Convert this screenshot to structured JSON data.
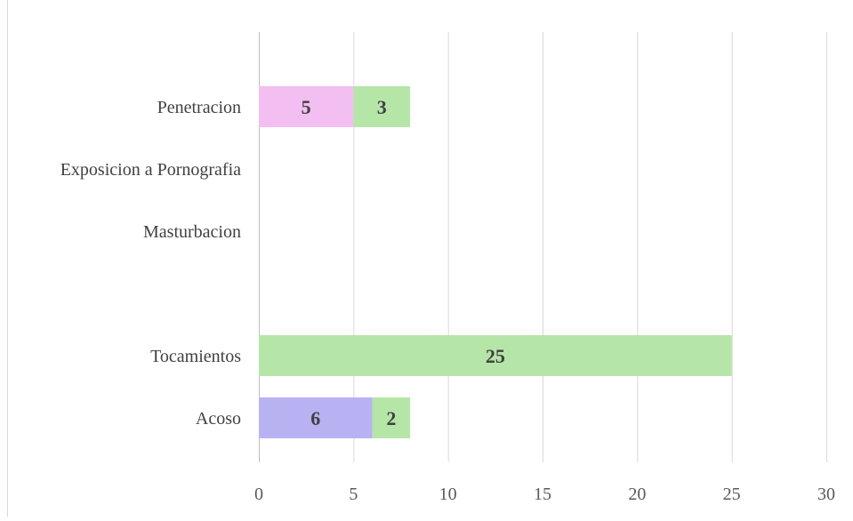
{
  "chart_data": {
    "type": "bar",
    "orientation": "horizontal",
    "stacked": true,
    "categories": [
      "Penetracion",
      "Exposicion a Pornografia",
      "Masturbacion",
      "",
      "Tocamientos",
      "Acoso"
    ],
    "series": [
      {
        "color": "#f3bef1",
        "values": [
          5,
          null,
          null,
          null,
          null,
          null
        ]
      },
      {
        "color": "#b8b2f3",
        "values": [
          null,
          null,
          null,
          null,
          null,
          6
        ]
      },
      {
        "color": "#b5e6a8",
        "values": [
          3,
          null,
          null,
          null,
          25,
          2
        ]
      }
    ],
    "xlim": [
      0,
      30
    ],
    "xticks": [
      "0",
      "5",
      "10",
      "15",
      "20",
      "25",
      "30"
    ],
    "grid": true,
    "legend": "none",
    "title": "",
    "xlabel": "",
    "ylabel": ""
  }
}
